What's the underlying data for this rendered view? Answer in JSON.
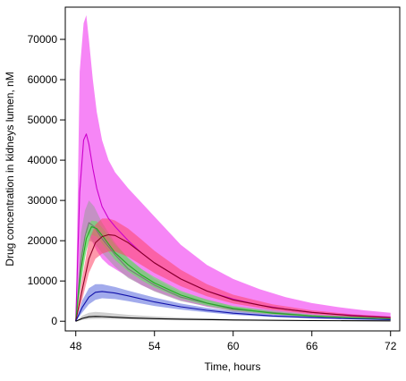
{
  "chart_data": {
    "type": "line",
    "xlabel": "Time, hours",
    "ylabel": "Drug concentration in kidneys lumen, nM",
    "x_ticks": [
      48,
      54,
      60,
      66,
      72
    ],
    "y_ticks": [
      0,
      10000,
      20000,
      30000,
      40000,
      50000,
      60000,
      70000
    ],
    "xlim": [
      47.2,
      72.7
    ],
    "ylim": [
      -2400,
      78000
    ],
    "grid": false,
    "legend": "none",
    "series": [
      {
        "color": "#ee00ee",
        "fill": "#ee22ee",
        "line": "#cc00cc",
        "x": [
          48,
          48.3,
          48.6,
          48.8,
          49.0,
          49.3,
          49.6,
          50.0,
          50.5,
          51,
          52,
          53,
          54,
          56,
          58,
          60,
          62,
          64,
          66,
          68,
          70,
          72
        ],
        "y": [
          0,
          32000,
          45000,
          46500,
          44000,
          38000,
          33000,
          28500,
          25500,
          23500,
          20000,
          17000,
          14500,
          10500,
          7500,
          5500,
          4000,
          3000,
          2200,
          1700,
          1300,
          1000
        ],
        "upper": [
          0,
          62000,
          74000,
          76000,
          70000,
          60000,
          52000,
          45000,
          40000,
          37000,
          33000,
          29500,
          26000,
          19000,
          14000,
          10500,
          8000,
          6000,
          4500,
          3500,
          2700,
          2100
        ],
        "lower": [
          0,
          10000,
          20000,
          22000,
          21500,
          19500,
          17500,
          15500,
          14000,
          13000,
          11000,
          9000,
          7500,
          5200,
          3600,
          2600,
          1900,
          1400,
          1100,
          850,
          650,
          500
        ]
      },
      {
        "color": "#999999",
        "fill": "#9a9a9a",
        "line": "#777777",
        "x": [
          48,
          48.4,
          48.7,
          49.0,
          49.4,
          50,
          51,
          52,
          54,
          56,
          60,
          66,
          72
        ],
        "y": [
          0,
          15000,
          21000,
          24500,
          23500,
          20500,
          16500,
          13000,
          9000,
          6000,
          3000,
          1300,
          600
        ],
        "upper": [
          0,
          22000,
          27500,
          30000,
          28500,
          24500,
          19500,
          15500,
          10500,
          7200,
          3700,
          1700,
          800
        ],
        "lower": [
          0,
          9000,
          16000,
          20000,
          19500,
          17000,
          13500,
          10700,
          7400,
          5000,
          2400,
          1000,
          450
        ]
      },
      {
        "color": "#33dd33",
        "fill": "#55ee55",
        "line": "#22aa22",
        "x": [
          48,
          48.4,
          48.8,
          49.2,
          49.6,
          50.2,
          51,
          52,
          53,
          54,
          56,
          58,
          60,
          63,
          66,
          69,
          72
        ],
        "y": [
          0,
          13000,
          20500,
          23500,
          23000,
          20500,
          17000,
          14000,
          11500,
          9500,
          6500,
          4500,
          3200,
          2000,
          1300,
          900,
          600
        ],
        "upper": [
          0,
          17000,
          23000,
          25000,
          24800,
          22500,
          19000,
          15800,
          13000,
          11000,
          7600,
          5300,
          3800,
          2400,
          1550,
          1050,
          700
        ],
        "lower": [
          0,
          10000,
          17500,
          21500,
          21000,
          18500,
          15200,
          12400,
          10200,
          8400,
          5700,
          3900,
          2700,
          1700,
          1100,
          750,
          500
        ]
      },
      {
        "color": "#ff3355",
        "fill": "#ff4466",
        "line": "#880022",
        "x": [
          48,
          48.5,
          49,
          49.5,
          50.0,
          50.5,
          51,
          52,
          53,
          54,
          56,
          58,
          60,
          63,
          66,
          69,
          72
        ],
        "y": [
          0,
          8000,
          15500,
          19500,
          21000,
          21500,
          21300,
          19500,
          17000,
          14500,
          10500,
          7500,
          5300,
          3400,
          2200,
          1400,
          900
        ],
        "upper": [
          0,
          11000,
          20000,
          24000,
          25500,
          25500,
          25000,
          23000,
          20300,
          17500,
          12800,
          9200,
          6600,
          4200,
          2700,
          1750,
          1150
        ],
        "lower": [
          0,
          5500,
          12000,
          15500,
          16800,
          17300,
          17300,
          16000,
          14000,
          12000,
          8700,
          6200,
          4400,
          2800,
          1800,
          1150,
          750
        ]
      },
      {
        "color": "#4455dd",
        "fill": "#5566dd",
        "line": "#1111aa",
        "x": [
          48,
          48.5,
          49,
          49.5,
          50,
          51,
          52,
          54,
          56,
          58,
          60,
          63,
          66,
          69,
          72
        ],
        "y": [
          0,
          3500,
          6000,
          7200,
          7400,
          7000,
          6300,
          4800,
          3600,
          2700,
          2000,
          1300,
          900,
          600,
          400
        ],
        "upper": [
          0,
          5200,
          8200,
          9200,
          9200,
          8500,
          7600,
          5900,
          4400,
          3300,
          2500,
          1650,
          1100,
          750,
          500
        ],
        "lower": [
          0,
          2200,
          4200,
          5300,
          5700,
          5500,
          5000,
          3800,
          2900,
          2200,
          1600,
          1050,
          700,
          480,
          320
        ]
      },
      {
        "color": "#888888",
        "fill": "#aaaaaa",
        "line": "#000000",
        "x": [
          48,
          48.5,
          49,
          49.5,
          50,
          51,
          52,
          54,
          56,
          60,
          66,
          72
        ],
        "y": [
          0,
          700,
          1100,
          1200,
          1150,
          1000,
          850,
          650,
          500,
          300,
          150,
          80
        ],
        "upper": [
          0,
          1400,
          2100,
          2300,
          2200,
          1900,
          1600,
          1200,
          900,
          550,
          280,
          150
        ],
        "lower": [
          0,
          300,
          500,
          600,
          600,
          550,
          480,
          370,
          290,
          180,
          90,
          50
        ]
      }
    ]
  }
}
